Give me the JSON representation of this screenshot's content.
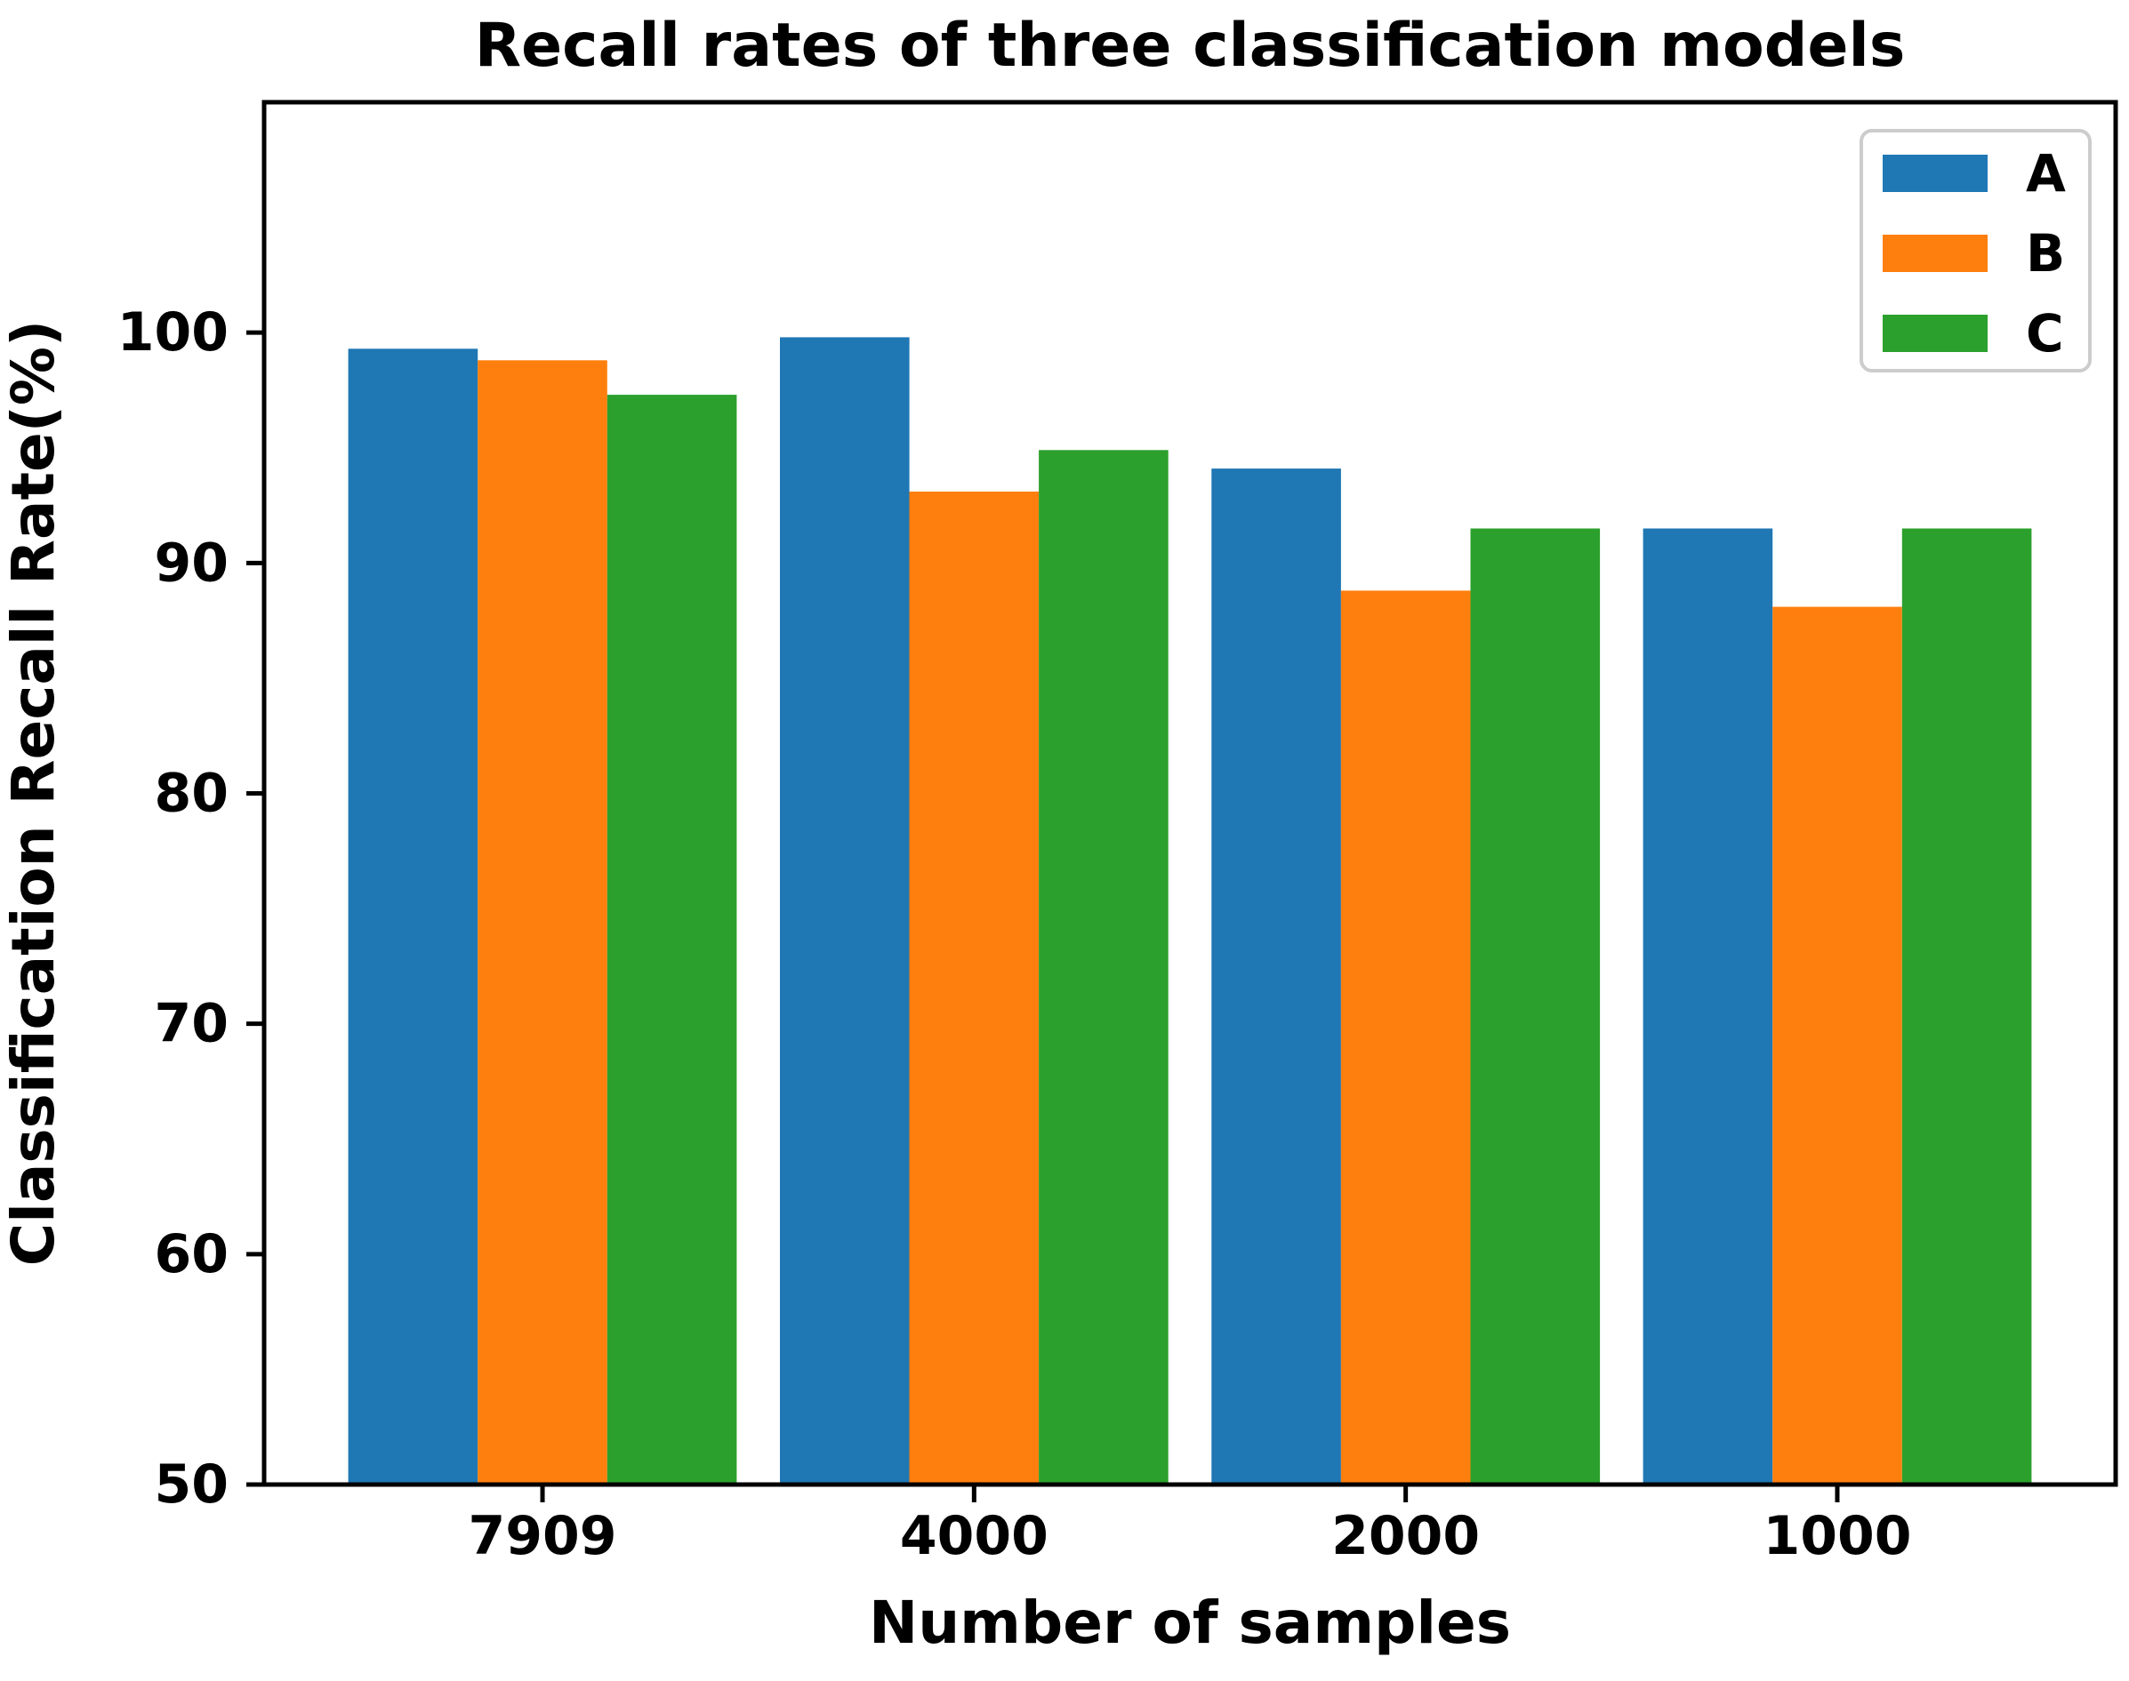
{
  "chart_data": {
    "type": "bar",
    "title": "Recall rates of three classification models",
    "xlabel": "Number of samples",
    "ylabel": "Classification Recall Rate(%)",
    "categories": [
      "7909",
      "4000",
      "2000",
      "1000"
    ],
    "series": [
      {
        "name": "A",
        "color": "#1f77b4",
        "values": [
          99.3,
          99.8,
          94.1,
          91.5
        ]
      },
      {
        "name": "B",
        "color": "#ff7f0e",
        "values": [
          98.8,
          93.1,
          88.8,
          88.1
        ]
      },
      {
        "name": "C",
        "color": "#2ca02c",
        "values": [
          97.3,
          94.9,
          91.5,
          91.5
        ]
      }
    ],
    "ylim": [
      50,
      110
    ],
    "yticks": [
      50,
      60,
      70,
      80,
      90,
      100
    ],
    "grid": false,
    "legend_position": "upper right",
    "legend_border_color": "#cccccc",
    "axis_color": "#000000",
    "background_color": "#ffffff"
  }
}
